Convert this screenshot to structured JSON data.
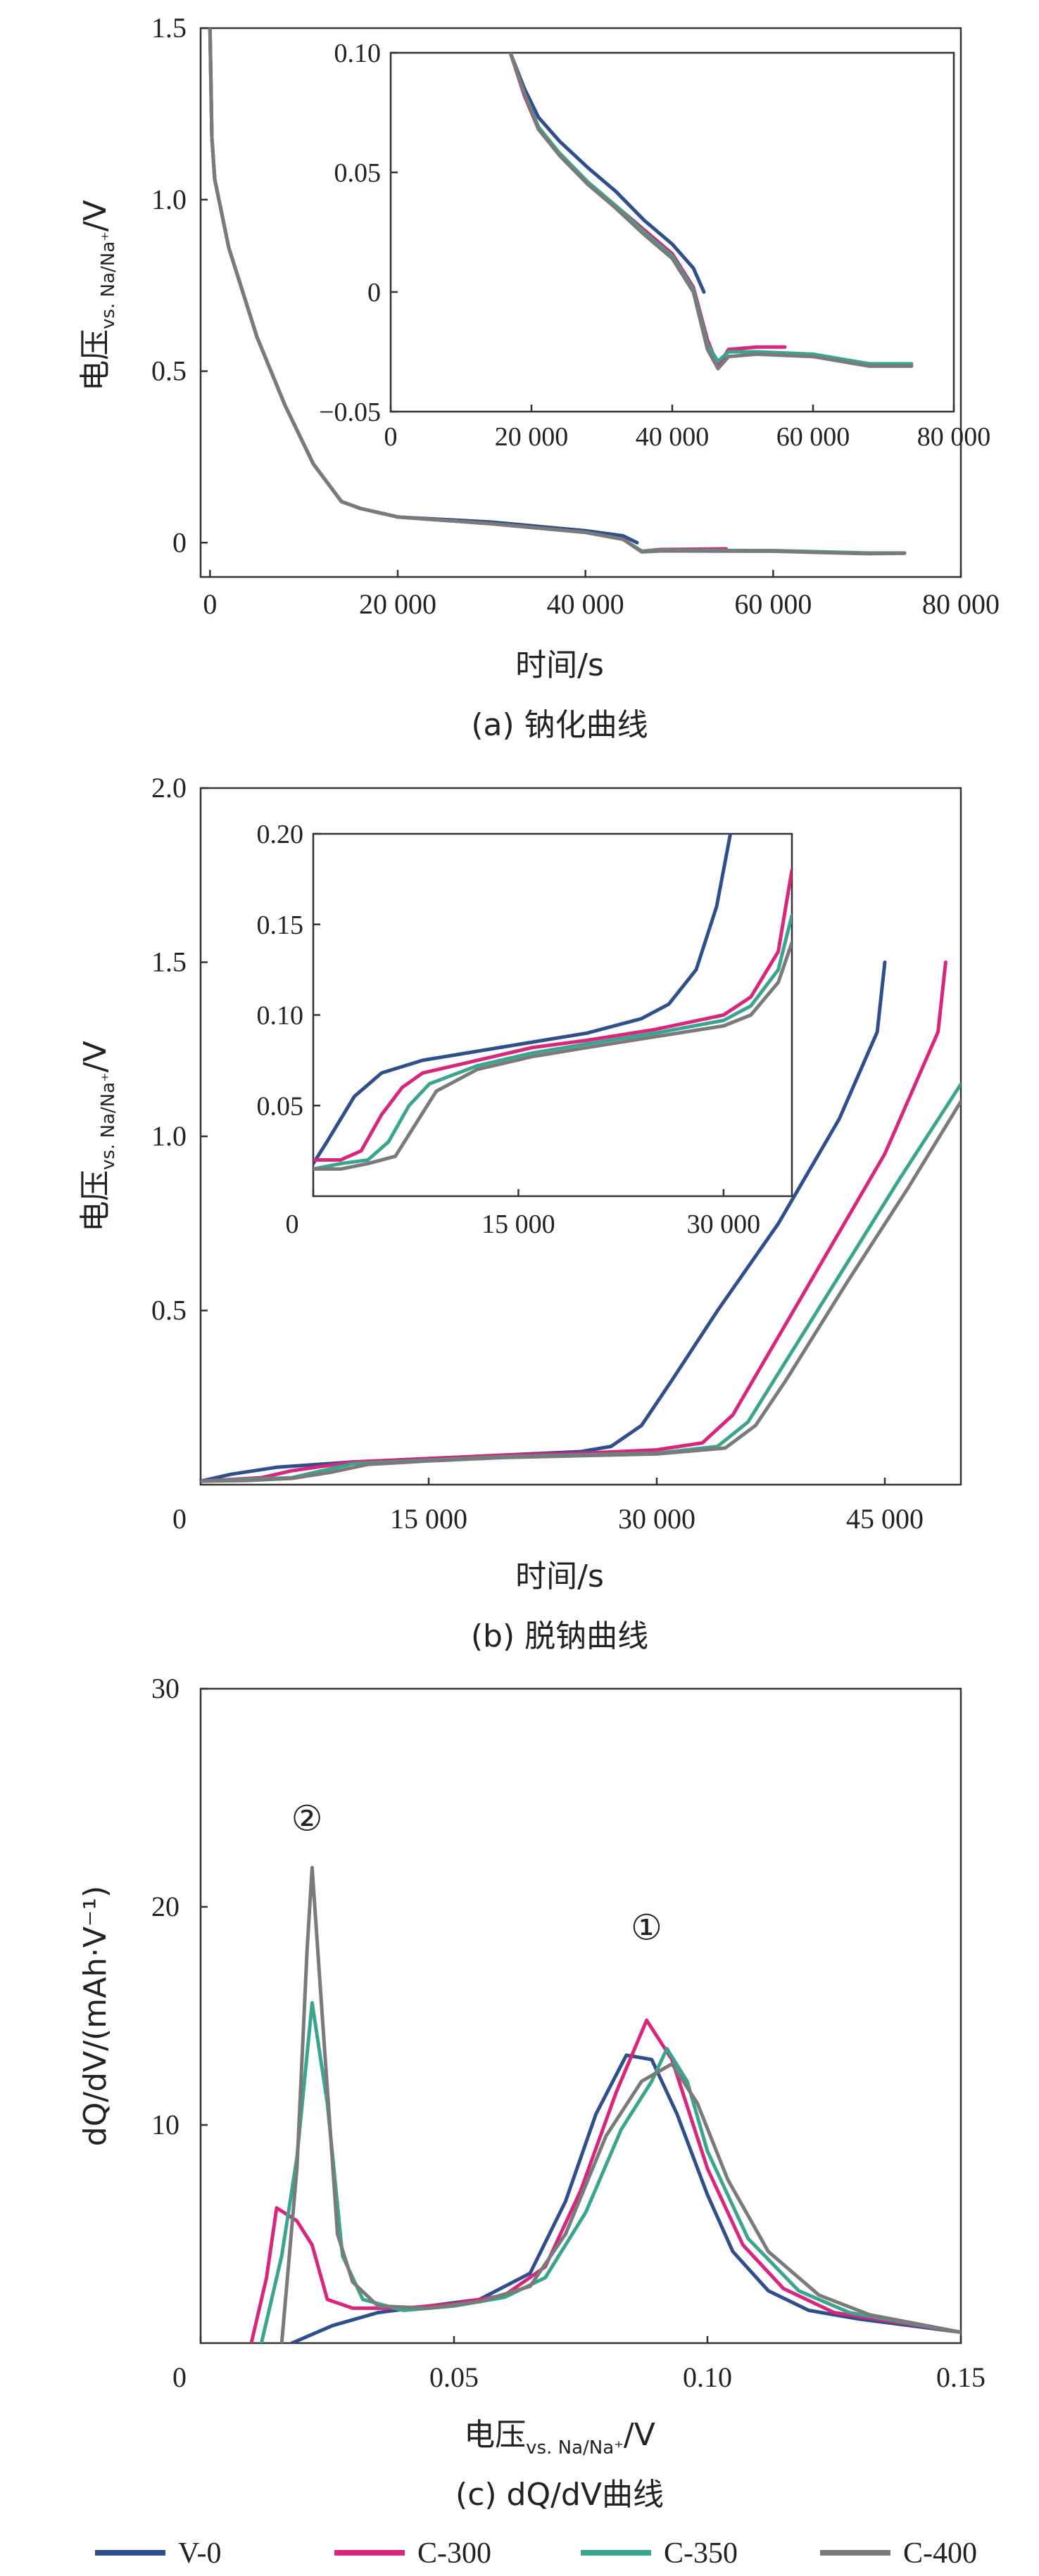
{
  "series_style": [
    {
      "name": "V-0",
      "color": "#2e4e8c"
    },
    {
      "name": "C-300",
      "color": "#d8267d"
    },
    {
      "name": "C-350",
      "color": "#3aa58e"
    },
    {
      "name": "C-400",
      "color": "#7a7a7a"
    }
  ],
  "chart_data": [
    {
      "type": "line",
      "caption": "(a) 钠化曲线",
      "xlabel": "时间/s",
      "ylabel_main": "电压",
      "ylabel_sub": "vs. Na/Na⁺",
      "ylabel_unit": "/V",
      "xlim": [
        0,
        80000
      ],
      "ylim": [
        -0.1,
        1.5
      ],
      "xticks": [
        0,
        20000,
        40000,
        60000,
        80000
      ],
      "xtick_labels": [
        "0",
        "20 000",
        "40 000",
        "60 000",
        "80 000"
      ],
      "yticks": [
        0,
        0.5,
        1.0,
        1.5
      ],
      "ytick_labels": [
        "0",
        "0.5",
        "1.0",
        "1.5"
      ],
      "series": [
        {
          "name": "V-0",
          "x": [
            0,
            200,
            500,
            2000,
            5000,
            8000,
            11000,
            14000,
            16000,
            20000,
            30000,
            40000,
            44000,
            45500
          ],
          "y": [
            1.5,
            1.18,
            1.06,
            0.86,
            0.6,
            0.4,
            0.23,
            0.12,
            0.1,
            0.075,
            0.06,
            0.035,
            0.02,
            0.0
          ]
        },
        {
          "name": "C-300",
          "x": [
            0,
            200,
            500,
            2000,
            5000,
            8000,
            11000,
            14000,
            16000,
            20000,
            30000,
            40000,
            44000,
            46000,
            48000,
            55000
          ],
          "y": [
            1.5,
            1.18,
            1.06,
            0.86,
            0.6,
            0.4,
            0.23,
            0.12,
            0.1,
            0.075,
            0.055,
            0.03,
            0.01,
            -0.025,
            -0.02,
            -0.018
          ]
        },
        {
          "name": "C-350",
          "x": [
            0,
            200,
            500,
            2000,
            5000,
            8000,
            11000,
            14000,
            16000,
            20000,
            30000,
            40000,
            44000,
            46000,
            48000,
            60000,
            70000,
            74000
          ],
          "y": [
            1.5,
            1.18,
            1.06,
            0.86,
            0.6,
            0.4,
            0.23,
            0.12,
            0.1,
            0.075,
            0.055,
            0.03,
            0.01,
            -0.025,
            -0.022,
            -0.023,
            -0.03,
            -0.03
          ]
        },
        {
          "name": "C-400",
          "x": [
            0,
            200,
            500,
            2000,
            5000,
            8000,
            11000,
            14000,
            16000,
            20000,
            30000,
            40000,
            44000,
            46000,
            48000,
            60000,
            70000,
            74000
          ],
          "y": [
            1.5,
            1.18,
            1.06,
            0.86,
            0.6,
            0.4,
            0.23,
            0.12,
            0.1,
            0.075,
            0.055,
            0.03,
            0.01,
            -0.027,
            -0.024,
            -0.025,
            -0.032,
            -0.031
          ]
        }
      ],
      "inset": {
        "xlim": [
          0,
          80000
        ],
        "ylim": [
          -0.05,
          0.1
        ],
        "xticks": [
          0,
          20000,
          40000,
          60000,
          80000
        ],
        "xtick_labels": [
          "0",
          "20 000",
          "40 000",
          "60 000",
          "80 000"
        ],
        "yticks": [
          -0.05,
          0,
          0.05,
          0.1
        ],
        "ytick_labels": [
          "−0.05",
          "0",
          "0.05",
          "0.10"
        ],
        "series": [
          {
            "name": "V-0",
            "x": [
              17000,
              19000,
              21000,
              24000,
              28000,
              32000,
              36000,
              40000,
              43000,
              44500
            ],
            "y": [
              0.1,
              0.085,
              0.073,
              0.063,
              0.052,
              0.042,
              0.03,
              0.02,
              0.01,
              0.0
            ]
          },
          {
            "name": "C-300",
            "x": [
              17000,
              19000,
              21000,
              24000,
              28000,
              32000,
              36000,
              40000,
              43000,
              45000,
              46500,
              48000,
              52000,
              56000
            ],
            "y": [
              0.1,
              0.082,
              0.068,
              0.058,
              0.046,
              0.036,
              0.026,
              0.016,
              0.002,
              -0.02,
              -0.031,
              -0.024,
              -0.023,
              -0.023
            ]
          },
          {
            "name": "C-350",
            "x": [
              17000,
              19000,
              21000,
              24000,
              28000,
              32000,
              36000,
              40000,
              43000,
              45000,
              46500,
              48000,
              52000,
              60000,
              68000,
              74000
            ],
            "y": [
              0.1,
              0.083,
              0.069,
              0.058,
              0.046,
              0.036,
              0.025,
              0.015,
              0.001,
              -0.022,
              -0.029,
              -0.025,
              -0.025,
              -0.026,
              -0.03,
              -0.03
            ]
          },
          {
            "name": "C-400",
            "x": [
              17000,
              19000,
              21000,
              24000,
              28000,
              32000,
              36000,
              40000,
              43000,
              45000,
              46500,
              48000,
              52000,
              60000,
              68000,
              74000
            ],
            "y": [
              0.1,
              0.083,
              0.068,
              0.057,
              0.045,
              0.035,
              0.024,
              0.014,
              0.0,
              -0.024,
              -0.032,
              -0.027,
              -0.026,
              -0.027,
              -0.031,
              -0.031
            ]
          }
        ]
      }
    },
    {
      "type": "line",
      "caption": "(b) 脱钠曲线",
      "xlabel": "时间/s",
      "ylabel_main": "电压",
      "ylabel_sub": "vs. Na/Na⁺",
      "ylabel_unit": "/V",
      "xlim": [
        0,
        50000
      ],
      "ylim": [
        0,
        2.0
      ],
      "xticks": [
        0,
        15000,
        30000,
        45000
      ],
      "xtick_labels": [
        "0",
        "15 000",
        "30 000",
        "45 000"
      ],
      "yticks": [
        0.5,
        1.0,
        1.5,
        2.0
      ],
      "ytick_labels": [
        "0.5",
        "1.0",
        "1.5",
        "2.0"
      ],
      "series": [
        {
          "name": "V-0",
          "x": [
            0,
            2000,
            5000,
            10000,
            15000,
            20000,
            25000,
            27000,
            29000,
            31000,
            34000,
            38000,
            42000,
            44500,
            45000
          ],
          "y": [
            0.01,
            0.03,
            0.05,
            0.065,
            0.075,
            0.085,
            0.095,
            0.11,
            0.17,
            0.3,
            0.5,
            0.75,
            1.05,
            1.3,
            1.5
          ]
        },
        {
          "name": "C-300",
          "x": [
            0,
            2000,
            4000,
            6000,
            10000,
            15000,
            20000,
            25000,
            30000,
            33000,
            35000,
            37000,
            41000,
            45000,
            48500,
            49000
          ],
          "y": [
            0.01,
            0.015,
            0.02,
            0.04,
            0.065,
            0.075,
            0.085,
            0.09,
            0.1,
            0.12,
            0.2,
            0.35,
            0.65,
            0.95,
            1.3,
            1.5
          ]
        },
        {
          "name": "C-350",
          "x": [
            0,
            3000,
            6000,
            8000,
            10000,
            15000,
            20000,
            25000,
            30000,
            34000,
            36000,
            38000,
            42000,
            46000,
            50000
          ],
          "y": [
            0.01,
            0.015,
            0.02,
            0.04,
            0.06,
            0.07,
            0.08,
            0.085,
            0.09,
            0.11,
            0.18,
            0.32,
            0.6,
            0.88,
            1.15
          ]
        },
        {
          "name": "C-400",
          "x": [
            0,
            3000,
            6000,
            8500,
            11000,
            15000,
            20000,
            25000,
            30000,
            34500,
            36500,
            38500,
            42500,
            46500,
            50000
          ],
          "y": [
            0.01,
            0.012,
            0.018,
            0.035,
            0.058,
            0.068,
            0.078,
            0.083,
            0.088,
            0.105,
            0.17,
            0.3,
            0.58,
            0.85,
            1.1
          ]
        }
      ],
      "inset": {
        "xlim": [
          0,
          35000
        ],
        "ylim": [
          0,
          0.2
        ],
        "xticks": [
          0,
          15000,
          30000
        ],
        "xtick_labels": [
          "0",
          "15 000",
          "30 000"
        ],
        "yticks": [
          0.05,
          0.1,
          0.15,
          0.2
        ],
        "ytick_labels": [
          "0.05",
          "0.10",
          "0.15",
          "0.20"
        ],
        "series": [
          {
            "name": "V-0",
            "x": [
              0,
              1000,
              3000,
              5000,
              8000,
              12000,
              16000,
              20000,
              24000,
              26000,
              28000,
              29500,
              30500
            ],
            "y": [
              0.018,
              0.03,
              0.055,
              0.068,
              0.075,
              0.08,
              0.085,
              0.09,
              0.098,
              0.106,
              0.125,
              0.16,
              0.2
            ]
          },
          {
            "name": "C-300",
            "x": [
              0,
              2000,
              3500,
              5000,
              6500,
              8000,
              12000,
              16000,
              20000,
              25000,
              30000,
              32000,
              34000,
              35000
            ],
            "y": [
              0.02,
              0.02,
              0.025,
              0.045,
              0.06,
              0.068,
              0.075,
              0.082,
              0.086,
              0.092,
              0.1,
              0.11,
              0.135,
              0.18
            ]
          },
          {
            "name": "C-350",
            "x": [
              0,
              2000,
              4000,
              5500,
              7000,
              8500,
              12000,
              16000,
              20000,
              25000,
              30000,
              32000,
              34000,
              35000
            ],
            "y": [
              0.015,
              0.018,
              0.02,
              0.03,
              0.05,
              0.062,
              0.072,
              0.079,
              0.084,
              0.09,
              0.097,
              0.105,
              0.125,
              0.155
            ]
          },
          {
            "name": "C-400",
            "x": [
              0,
              2000,
              4000,
              6000,
              7500,
              9000,
              12000,
              16000,
              20000,
              25000,
              30000,
              32000,
              34000,
              35000
            ],
            "y": [
              0.015,
              0.015,
              0.018,
              0.022,
              0.04,
              0.058,
              0.07,
              0.077,
              0.082,
              0.088,
              0.094,
              0.1,
              0.118,
              0.14
            ]
          }
        ]
      }
    },
    {
      "type": "line",
      "caption": "(c) dQ/dV曲线",
      "xlabel_main": "电压",
      "xlabel_sub": "vs. Na/Na⁺",
      "xlabel_unit": "/V",
      "ylabel": "dQ/dV/(mAh·V⁻¹)",
      "xlim": [
        0,
        0.15
      ],
      "ylim": [
        0,
        30
      ],
      "xticks": [
        0,
        0.05,
        0.1,
        0.15
      ],
      "xtick_labels": [
        "0",
        "0.05",
        "0.10",
        "0.15"
      ],
      "yticks": [
        10,
        20,
        30
      ],
      "ytick_labels": [
        "10",
        "20",
        "30"
      ],
      "annotations": [
        {
          "text": "①",
          "x": 0.088,
          "y": 18.5
        },
        {
          "text": "②",
          "x": 0.021,
          "y": 23.5
        }
      ],
      "series": [
        {
          "name": "V-0",
          "x": [
            0.018,
            0.026,
            0.035,
            0.045,
            0.055,
            0.065,
            0.072,
            0.078,
            0.084,
            0.089,
            0.094,
            0.1,
            0.105,
            0.112,
            0.12,
            0.13,
            0.15
          ],
          "y": [
            0,
            0.8,
            1.4,
            1.7,
            2.0,
            3.2,
            6.5,
            10.5,
            13.2,
            13.0,
            10.5,
            6.8,
            4.2,
            2.4,
            1.5,
            1.1,
            0.5
          ]
        },
        {
          "name": "C-300",
          "x": [
            0.01,
            0.013,
            0.015,
            0.019,
            0.022,
            0.025,
            0.03,
            0.04,
            0.05,
            0.06,
            0.068,
            0.075,
            0.082,
            0.088,
            0.093,
            0.1,
            0.107,
            0.115,
            0.125,
            0.15
          ],
          "y": [
            0,
            3.0,
            6.2,
            5.6,
            4.5,
            2.0,
            1.6,
            1.6,
            1.8,
            2.2,
            3.5,
            7.0,
            11.5,
            14.8,
            13.0,
            8.0,
            4.5,
            2.5,
            1.4,
            0.5
          ]
        },
        {
          "name": "C-350",
          "x": [
            0.012,
            0.016,
            0.019,
            0.022,
            0.025,
            0.028,
            0.032,
            0.04,
            0.05,
            0.06,
            0.068,
            0.076,
            0.083,
            0.089,
            0.092,
            0.096,
            0.1,
            0.108,
            0.118,
            0.128,
            0.15
          ],
          "y": [
            0,
            4.0,
            8.5,
            15.6,
            11.0,
            4.0,
            2.0,
            1.5,
            1.7,
            2.1,
            3.0,
            6.0,
            9.8,
            12.0,
            13.5,
            12.0,
            8.8,
            4.8,
            2.4,
            1.4,
            0.5
          ]
        },
        {
          "name": "C-400",
          "x": [
            0.016,
            0.019,
            0.021,
            0.022,
            0.024,
            0.027,
            0.03,
            0.035,
            0.045,
            0.055,
            0.065,
            0.072,
            0.08,
            0.087,
            0.093,
            0.098,
            0.104,
            0.112,
            0.122,
            0.132,
            0.15
          ],
          "y": [
            0,
            8.0,
            18.0,
            21.8,
            15.0,
            5.0,
            2.8,
            1.7,
            1.6,
            1.9,
            2.6,
            5.0,
            9.5,
            12.0,
            12.8,
            11.0,
            7.5,
            4.2,
            2.2,
            1.3,
            0.5
          ]
        }
      ]
    }
  ]
}
